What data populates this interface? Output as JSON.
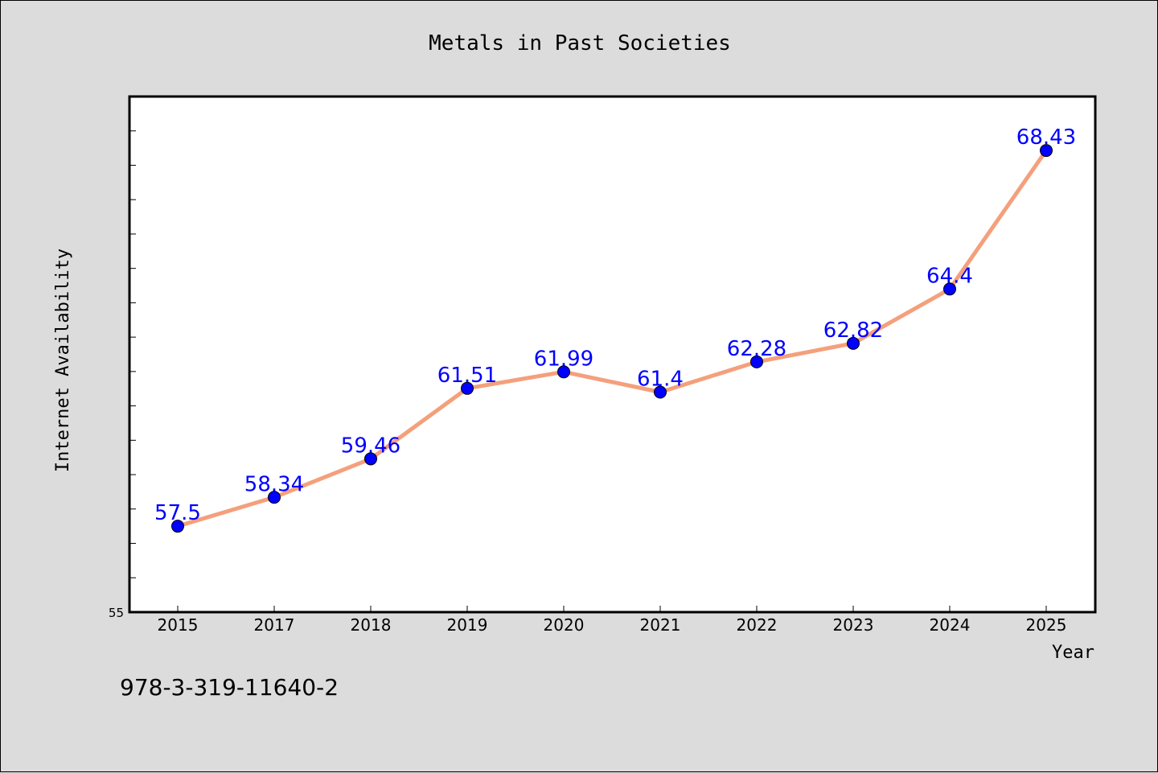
{
  "chart_data": {
    "type": "line",
    "title": "Metals in Past Societies",
    "xlabel": "Year",
    "ylabel": "Internet Availability",
    "categories": [
      "2015",
      "2017",
      "2018",
      "2019",
      "2020",
      "2021",
      "2022",
      "2023",
      "2024",
      "2025"
    ],
    "series": [
      {
        "values": [
          57.5,
          58.34,
          59.46,
          61.51,
          61.99,
          61.4,
          62.28,
          62.82,
          64.4,
          68.43
        ],
        "labels": [
          "57.5",
          "58.34",
          "59.46",
          "61.51",
          "61.99",
          "61.4",
          "62.28",
          "62.82",
          "64.4",
          "68.43"
        ]
      }
    ],
    "ylim": [
      55,
      70
    ],
    "y_tick_labels": [
      "55"
    ],
    "y_minor_tick_step": 1,
    "grid": false,
    "colors": {
      "line": "#f4a07c",
      "marker": "#0000ff",
      "data_label": "#0000ff",
      "plot_background": "#ffffff",
      "figure_background": "#dcdcdc"
    }
  },
  "annotation": "978-3-319-11640-2"
}
